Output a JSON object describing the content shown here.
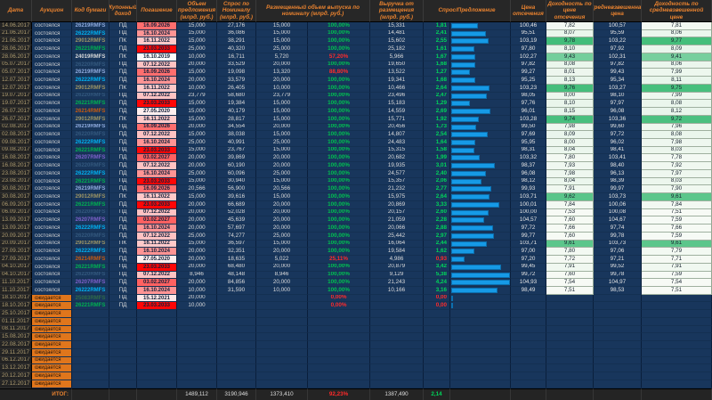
{
  "table": {
    "headers": {
      "date": "Дата",
      "auction": "Аукцион",
      "code": "Код бумаги",
      "coupon": "Купонный доход",
      "maturity": "Погашение",
      "offer": "Объем предложения (млрд. руб.)",
      "demand": "Спрос по Номиналу (млрд. руб.)",
      "placed": "Размещенный объем выпуска по номиналу (млрд. руб.)",
      "revenue": "Выручка от размещения (млрд. руб.)",
      "ratio": "Спрос/Предложение",
      "cutoff_price": "Цена отсечения",
      "cutoff_yield": "Доходность по цене отсечения",
      "wavg_price": "Средневзвешенная цена",
      "wavg_yield": "Доходность по средневзвешенной цене"
    },
    "rows": [
      {
        "date": "14.06.2017",
        "auction": "состоялся",
        "code": "26219RMFS",
        "coupon": "ПД",
        "maturity": "16.09.2026",
        "offer": "15,000",
        "demand": "27,176",
        "placed": "15,000",
        "pct": "100,00%",
        "revenue": "15,331",
        "ratio": "1,81",
        "p1": "100,46",
        "y1": "7,82",
        "p2": "100,57",
        "y2": "7,81"
      },
      {
        "date": "21.06.2017",
        "auction": "состоялся",
        "code": "26222RMFS",
        "coupon": "ПД",
        "maturity": "16.10.2024",
        "offer": "15,000",
        "demand": "36,086",
        "placed": "15,000",
        "pct": "100,00%",
        "revenue": "14,481",
        "ratio": "2,41",
        "p1": "95,51",
        "y1": "8,07",
        "p2": "95,59",
        "y2": "8,06"
      },
      {
        "date": "21.06.2017",
        "auction": "состоялся",
        "code": "29012RMFS",
        "coupon": "ПК",
        "maturity": "16.11.2022",
        "offer": "15,000",
        "demand": "38,291",
        "placed": "15,000",
        "pct": "100,00%",
        "revenue": "15,602",
        "ratio": "2,55",
        "p1": "103,19",
        "y1": "9,78",
        "p2": "103,22",
        "y2": "9,77"
      },
      {
        "date": "28.06.2017",
        "auction": "состоялся",
        "code": "26221RMFS",
        "coupon": "ПД",
        "maturity": "23.03.2033",
        "offer": "25,000",
        "demand": "40,320",
        "placed": "25,000",
        "pct": "100,00%",
        "revenue": "25,182",
        "ratio": "1,61",
        "p1": "97,80",
        "y1": "8,10",
        "p2": "97,92",
        "y2": "8,09"
      },
      {
        "date": "28.06.2017",
        "auction": "состоялся",
        "code": "24019RMFS",
        "coupon": "ПК",
        "maturity": "16.10.2019",
        "offer": "10,000",
        "demand": "16,711",
        "placed": "5,720",
        "pct": "57,20%",
        "revenue": "5,966",
        "ratio": "1,67",
        "p1": "102,27",
        "y1": "9,43",
        "p2": "102,31",
        "y2": "9,41"
      },
      {
        "date": "05.07.2017",
        "auction": "состоялся",
        "code": "26220RMFS",
        "coupon": "ПД",
        "maturity": "07.12.2022",
        "offer": "20,000",
        "demand": "33,529",
        "placed": "20,000",
        "pct": "100,00%",
        "revenue": "19,650",
        "ratio": "1,68",
        "p1": "97,82",
        "y1": "8,08",
        "p2": "97,82",
        "y2": "8,06"
      },
      {
        "date": "05.07.2017",
        "auction": "состоялся",
        "code": "26219RMFS",
        "coupon": "ПД",
        "maturity": "16.09.2026",
        "offer": "15,000",
        "demand": "19,098",
        "placed": "13,320",
        "pct": "88,80%",
        "revenue": "13,522",
        "ratio": "1,27",
        "p1": "99,27",
        "y1": "8,01",
        "p2": "99,43",
        "y2": "7,99"
      },
      {
        "date": "12.07.2017",
        "auction": "состоялся",
        "code": "26222RMFS",
        "coupon": "ПД",
        "maturity": "16.10.2024",
        "offer": "20,000",
        "demand": "33,579",
        "placed": "20,000",
        "pct": "100,00%",
        "revenue": "19,341",
        "ratio": "1,68",
        "p1": "95,25",
        "y1": "8,13",
        "p2": "95,34",
        "y2": "8,11"
      },
      {
        "date": "12.07.2017",
        "auction": "состоялся",
        "code": "29012RMFS",
        "coupon": "ПК",
        "maturity": "16.11.2022",
        "offer": "10,000",
        "demand": "26,405",
        "placed": "10,000",
        "pct": "100,00%",
        "revenue": "10,466",
        "ratio": "2,64",
        "p1": "103,23",
        "y1": "9,76",
        "p2": "103,27",
        "y2": "9,75"
      },
      {
        "date": "19.07.2017",
        "auction": "состоялся",
        "code": "26220RMFS",
        "coupon": "ПД",
        "maturity": "07.12.2022",
        "offer": "23,779",
        "demand": "58,680",
        "placed": "23,779",
        "pct": "100,00%",
        "revenue": "23,496",
        "ratio": "2,47",
        "p1": "98,05",
        "y1": "8,00",
        "p2": "98,10",
        "y2": "7,99"
      },
      {
        "date": "19.07.2017",
        "auction": "состоялся",
        "code": "26221RMFS",
        "coupon": "ПД",
        "maturity": "23.03.2033",
        "offer": "15,000",
        "demand": "19,384",
        "placed": "15,000",
        "pct": "100,00%",
        "revenue": "15,183",
        "ratio": "1,29",
        "p1": "97,76",
        "y1": "8,10",
        "p2": "97,97",
        "y2": "8,08"
      },
      {
        "date": "26.07.2017",
        "auction": "состоялся",
        "code": "26214RMFS",
        "coupon": "ПД",
        "maturity": "27.05.2020",
        "offer": "15,000",
        "demand": "40,179",
        "placed": "15,000",
        "pct": "100,00%",
        "revenue": "14,559",
        "ratio": "2,69",
        "p1": "96,01",
        "y1": "8,15",
        "p2": "96,08",
        "y2": "8,12"
      },
      {
        "date": "26.07.2017",
        "auction": "состоялся",
        "code": "29012RMFS",
        "coupon": "ПК",
        "maturity": "16.11.2022",
        "offer": "15,000",
        "demand": "28,817",
        "placed": "15,000",
        "pct": "100,00%",
        "revenue": "15,771",
        "ratio": "1,92",
        "p1": "103,28",
        "y1": "9,74",
        "p2": "103,36",
        "y2": "9,72"
      },
      {
        "date": "02.08.2017",
        "auction": "состоялся",
        "code": "26219RMFS",
        "coupon": "ПД",
        "maturity": "16.09.2026",
        "offer": "20,000",
        "demand": "34,554",
        "placed": "20,000",
        "pct": "100,00%",
        "revenue": "20,456",
        "ratio": "1,73",
        "p1": "99,50",
        "y1": "7,98",
        "p2": "99,60",
        "y2": "7,96"
      },
      {
        "date": "02.08.2017",
        "auction": "состоялся",
        "code": "26220RMFS",
        "coupon": "ПД",
        "maturity": "07.12.2022",
        "offer": "15,000",
        "demand": "38,038",
        "placed": "15,000",
        "pct": "100,00%",
        "revenue": "14,807",
        "ratio": "2,54",
        "p1": "97,69",
        "y1": "8,09",
        "p2": "97,72",
        "y2": "8,08"
      },
      {
        "date": "09.08.2017",
        "auction": "состоялся",
        "code": "26222RMFS",
        "coupon": "ПД",
        "maturity": "16.10.2024",
        "offer": "25,000",
        "demand": "40,991",
        "placed": "25,000",
        "pct": "100,00%",
        "revenue": "24,483",
        "ratio": "1,64",
        "p1": "95,95",
        "y1": "8,00",
        "p2": "96,02",
        "y2": "7,98"
      },
      {
        "date": "09.08.2017",
        "auction": "состоялся",
        "code": "26221RMFS",
        "coupon": "ПД",
        "maturity": "23.03.2033",
        "offer": "15,000",
        "demand": "23,767",
        "placed": "15,000",
        "pct": "100,00%",
        "revenue": "15,315",
        "ratio": "1,58",
        "p1": "98,31",
        "y1": "8,04",
        "p2": "98,41",
        "y2": "8,03"
      },
      {
        "date": "16.08.2017",
        "auction": "состоялся",
        "code": "26207RMFS",
        "coupon": "ПД",
        "maturity": "03.02.2027",
        "offer": "20,000",
        "demand": "39,869",
        "placed": "20,000",
        "pct": "100,00%",
        "revenue": "20,682",
        "ratio": "1,99",
        "p1": "103,32",
        "y1": "7,80",
        "p2": "103,41",
        "y2": "7,78"
      },
      {
        "date": "16.08.2017",
        "auction": "состоялся",
        "code": "26220RMFS",
        "coupon": "ПД",
        "maturity": "07.12.2022",
        "offer": "20,000",
        "demand": "60,190",
        "placed": "20,000",
        "pct": "100,00%",
        "revenue": "19,935",
        "ratio": "3,01",
        "p1": "98,37",
        "y1": "7,93",
        "p2": "98,40",
        "y2": "7,92"
      },
      {
        "date": "23.08.2017",
        "auction": "состоялся",
        "code": "26222RMFS",
        "coupon": "ПД",
        "maturity": "16.10.2024",
        "offer": "25,000",
        "demand": "60,096",
        "placed": "25,000",
        "pct": "100,00%",
        "revenue": "24,577",
        "ratio": "2,40",
        "p1": "96,08",
        "y1": "7,98",
        "p2": "96,13",
        "y2": "7,97"
      },
      {
        "date": "23.08.2017",
        "auction": "состоялся",
        "code": "26221RMFS",
        "coupon": "ПД",
        "maturity": "23.03.2033",
        "offer": "15,000",
        "demand": "30,940",
        "placed": "15,000",
        "pct": "100,00%",
        "revenue": "15,357",
        "ratio": "2,06",
        "p1": "98,12",
        "y1": "8,04",
        "p2": "98,39",
        "y2": "8,03"
      },
      {
        "date": "30.08.2017",
        "auction": "состоялся",
        "code": "26219RMFS",
        "coupon": "ПД",
        "maturity": "16.09.2026",
        "offer": "20,566",
        "demand": "56,900",
        "placed": "20,566",
        "pct": "100,00%",
        "revenue": "21,232",
        "ratio": "2,77",
        "p1": "99,93",
        "y1": "7,91",
        "p2": "99,97",
        "y2": "7,90"
      },
      {
        "date": "30.08.2017",
        "auction": "состоялся",
        "code": "29012RMFS",
        "coupon": "ПК",
        "maturity": "16.11.2022",
        "offer": "15,000",
        "demand": "39,616",
        "placed": "15,000",
        "pct": "100,00%",
        "revenue": "15,975",
        "ratio": "2,64",
        "p1": "103,71",
        "y1": "9,62",
        "p2": "103,73",
        "y2": "9,61"
      },
      {
        "date": "06.09.2017",
        "auction": "состоялся",
        "code": "26221RMFS",
        "coupon": "ПД",
        "maturity": "23.03.2033",
        "offer": "20,000",
        "demand": "66,689",
        "placed": "20,000",
        "pct": "100,00%",
        "revenue": "20,869",
        "ratio": "3,33",
        "p1": "100,01",
        "y1": "7,84",
        "p2": "100,06",
        "y2": "7,84"
      },
      {
        "date": "06.09.2017",
        "auction": "состоялся",
        "code": "26220RMFS",
        "coupon": "ПД",
        "maturity": "07.12.2022",
        "offer": "20,000",
        "demand": "52,028",
        "placed": "20,000",
        "pct": "100,00%",
        "revenue": "20,157",
        "ratio": "2,60",
        "p1": "100,00",
        "y1": "7,53",
        "p2": "100,08",
        "y2": "7,51"
      },
      {
        "date": "13.09.2017",
        "auction": "состоялся",
        "code": "26207RMFS",
        "coupon": "ПД",
        "maturity": "03.02.2027",
        "offer": "20,000",
        "demand": "45,639",
        "placed": "20,000",
        "pct": "100,00%",
        "revenue": "21,059",
        "ratio": "2,28",
        "p1": "104,57",
        "y1": "7,60",
        "p2": "104,67",
        "y2": "7,59"
      },
      {
        "date": "13.09.2017",
        "auction": "состоялся",
        "code": "26222RMFS",
        "coupon": "ПД",
        "maturity": "16.10.2024",
        "offer": "20,000",
        "demand": "57,697",
        "placed": "20,000",
        "pct": "100,00%",
        "revenue": "20,066",
        "ratio": "2,88",
        "p1": "97,72",
        "y1": "7,66",
        "p2": "97,74",
        "y2": "7,66"
      },
      {
        "date": "20.09.2017",
        "auction": "состоялся",
        "code": "26220RMFS",
        "coupon": "ПД",
        "maturity": "07.12.2022",
        "offer": "25,000",
        "demand": "74,277",
        "placed": "25,000",
        "pct": "100,00%",
        "revenue": "25,442",
        "ratio": "2,97",
        "p1": "99,77",
        "y1": "7,60",
        "p2": "99,78",
        "y2": "7,59"
      },
      {
        "date": "20.09.2017",
        "auction": "состоялся",
        "code": "29012RMFS",
        "coupon": "ПК",
        "maturity": "16.11.2022",
        "offer": "15,000",
        "demand": "36,597",
        "placed": "15,000",
        "pct": "100,00%",
        "revenue": "16,064",
        "ratio": "2,44",
        "p1": "103,71",
        "y1": "9,61",
        "p2": "103,73",
        "y2": "9,61"
      },
      {
        "date": "27.09.2017",
        "auction": "состоялся",
        "code": "26222RMFS",
        "coupon": "ПД",
        "maturity": "16.10.2024",
        "offer": "20,000",
        "demand": "32,351",
        "placed": "20,000",
        "pct": "100,00%",
        "revenue": "19,584",
        "ratio": "1,62",
        "p1": "97,00",
        "y1": "7,80",
        "p2": "97,06",
        "y2": "7,79"
      },
      {
        "date": "27.09.2017",
        "auction": "состоялся",
        "code": "26214RMFS",
        "coupon": "ПД",
        "maturity": "27.05.2020",
        "offer": "20,000",
        "demand": "18,635",
        "placed": "5,022",
        "pct": "25,11%",
        "revenue": "4,986",
        "ratio": "0,93",
        "p1": "97,20",
        "y1": "7,72",
        "p2": "97,21",
        "y2": "7,71"
      },
      {
        "date": "04.10.2017",
        "auction": "состоялся",
        "code": "26221RMFS",
        "coupon": "ПД",
        "maturity": "23.03.2033",
        "offer": "20,000",
        "demand": "68,480",
        "placed": "20,000",
        "pct": "100,00%",
        "revenue": "20,879",
        "ratio": "3,42",
        "p1": "99,45",
        "y1": "7,91",
        "p2": "99,52",
        "y2": "7,91"
      },
      {
        "date": "04.10.2017",
        "auction": "состоялся",
        "code": "26220RMFS",
        "coupon": "ПД",
        "maturity": "07.12.2022",
        "offer": "8,946",
        "demand": "48,148",
        "placed": "8,946",
        "pct": "100,00%",
        "revenue": "9,129",
        "ratio": "5,38",
        "p1": "99,72",
        "y1": "7,60",
        "p2": "99,78",
        "y2": "7,59"
      },
      {
        "date": "11.10.2017",
        "auction": "состоялся",
        "code": "26207RMFS",
        "coupon": "ПД",
        "maturity": "03.02.2027",
        "offer": "20,000",
        "demand": "84,856",
        "placed": "20,000",
        "pct": "100,00%",
        "revenue": "21,243",
        "ratio": "4,24",
        "p1": "104,93",
        "y1": "7,54",
        "p2": "104,97",
        "y2": "7,54"
      },
      {
        "date": "11.10.2017",
        "auction": "состоялся",
        "code": "26222RMFS",
        "coupon": "ПД",
        "maturity": "16.10.2024",
        "offer": "10,000",
        "demand": "31,590",
        "placed": "10,000",
        "pct": "100,00%",
        "revenue": "10,166",
        "ratio": "3,16",
        "p1": "98,49",
        "y1": "7,51",
        "p2": "98,53",
        "y2": "7,51"
      },
      {
        "date": "18.10.2017",
        "auction": "ожидается",
        "code": "25083RMFS",
        "coupon": "ПД",
        "maturity": "15.12.2021",
        "offer": "20,000",
        "demand": "",
        "placed": "",
        "pct": "0,00%",
        "revenue": "",
        "ratio": "0,00",
        "p1": "",
        "y1": "",
        "p2": "",
        "y2": ""
      },
      {
        "date": "18.10.2017",
        "auction": "ожидается",
        "code": "26221RMFS",
        "coupon": "ПД",
        "maturity": "23.03.2033",
        "offer": "10,000",
        "demand": "",
        "placed": "",
        "pct": "0,00%",
        "revenue": "",
        "ratio": "0,00",
        "p1": "",
        "y1": "",
        "p2": "",
        "y2": ""
      },
      {
        "date": "25.10.2017",
        "auction": "ожидается"
      },
      {
        "date": "01.11.2017",
        "auction": "ожидается"
      },
      {
        "date": "08.11.2017",
        "auction": "ожидается"
      },
      {
        "date": "15.08.2017",
        "auction": "ожидается"
      },
      {
        "date": "22.08.2017",
        "auction": "ожидается"
      },
      {
        "date": "29.11.2017",
        "auction": "ожидается"
      },
      {
        "date": "06.12.2017",
        "auction": "ожидается"
      },
      {
        "date": "13.12.2017",
        "auction": "ожидается"
      },
      {
        "date": "20.12.2017",
        "auction": "ожидается"
      },
      {
        "date": "27.12.2017",
        "auction": "ожидается"
      }
    ],
    "total": {
      "label": "ИТОГ:",
      "offer": "1489,112",
      "demand": "3190,946",
      "placed": "1373,410",
      "pct": "92,23%",
      "revenue": "1387,490",
      "ratio": "2,14"
    }
  },
  "colors": {
    "bar_fill": "#169ae6",
    "code_colors": {
      "26219RMFS": "#8faadc",
      "26222RMFS": "#00b0f0",
      "29012RMFS": "#9c9464",
      "26221RMFS": "#00b050",
      "24019RMFS": "#d9d9d9",
      "26220RMFS": "#33587d",
      "26214RMFS": "#c55a11",
      "26207RMFS": "#7d5fc8",
      "25083RMFS": "#2f6b46"
    },
    "maturity_colors": {
      "16.10.2019": "#fbfbfb",
      "27.05.2020": "#ffefef",
      "15.12.2021": "#ffe8e8",
      "16.11.2022": "#ffc9c9",
      "07.12.2022": "#ffc2c2",
      "16.10.2024": "#ff9494",
      "16.09.2026": "#ff6e6e",
      "03.02.2027": "#ff6161",
      "23.03.2033": "#ff0606"
    }
  }
}
